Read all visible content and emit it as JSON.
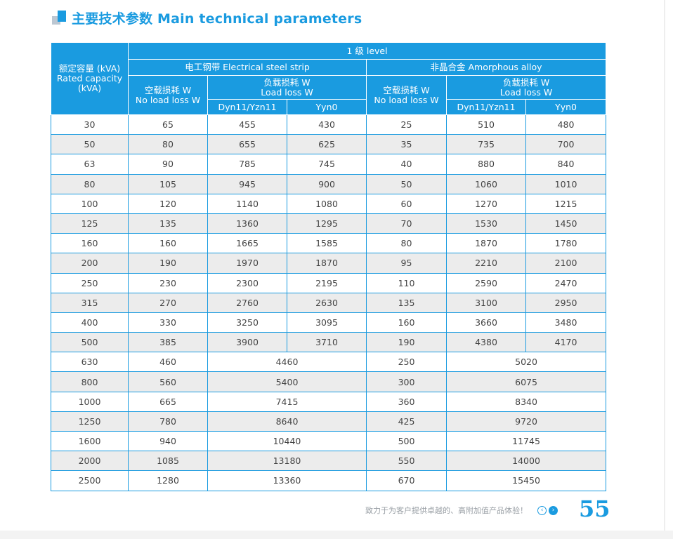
{
  "title": "主要技术参数 Main technical parameters",
  "table": {
    "header": {
      "capacity": [
        "额定容量 (kVA)",
        "Rated capacity",
        "(kVA)"
      ],
      "level": "1 级 level",
      "steel": "电工钢带 Electrical steel strip",
      "amorphous": "非晶合金 Amorphous alloy",
      "no_load": [
        "空载损耗 W",
        "No load loss W"
      ],
      "load": [
        "负载损耗 W",
        "Load loss W"
      ],
      "dyn": "Dyn11/Yzn11",
      "yyn": "Yyn0"
    },
    "split_rows": [
      [
        "30",
        "65",
        "455",
        "430",
        "25",
        "510",
        "480"
      ],
      [
        "50",
        "80",
        "655",
        "625",
        "35",
        "735",
        "700"
      ],
      [
        "63",
        "90",
        "785",
        "745",
        "40",
        "880",
        "840"
      ],
      [
        "80",
        "105",
        "945",
        "900",
        "50",
        "1060",
        "1010"
      ],
      [
        "100",
        "120",
        "1140",
        "1080",
        "60",
        "1270",
        "1215"
      ],
      [
        "125",
        "135",
        "1360",
        "1295",
        "70",
        "1530",
        "1450"
      ],
      [
        "160",
        "160",
        "1665",
        "1585",
        "80",
        "1870",
        "1780"
      ],
      [
        "200",
        "190",
        "1970",
        "1870",
        "95",
        "2210",
        "2100"
      ],
      [
        "250",
        "230",
        "2300",
        "2195",
        "110",
        "2590",
        "2470"
      ],
      [
        "315",
        "270",
        "2760",
        "2630",
        "135",
        "3100",
        "2950"
      ],
      [
        "400",
        "330",
        "3250",
        "3095",
        "160",
        "3660",
        "3480"
      ],
      [
        "500",
        "385",
        "3900",
        "3710",
        "190",
        "4380",
        "4170"
      ]
    ],
    "merged_rows": [
      [
        "630",
        "460",
        "4460",
        "250",
        "5020"
      ],
      [
        "800",
        "560",
        "5400",
        "300",
        "6075"
      ],
      [
        "1000",
        "665",
        "7415",
        "360",
        "8340"
      ],
      [
        "1250",
        "780",
        "8640",
        "425",
        "9720"
      ],
      [
        "1600",
        "940",
        "10440",
        "500",
        "11745"
      ],
      [
        "2000",
        "1085",
        "13180",
        "550",
        "14000"
      ],
      [
        "2500",
        "1280",
        "13360",
        "670",
        "15450"
      ]
    ]
  },
  "footer": {
    "slogan": "致力于为客户提供卓越的、高附加值产品体验！",
    "prev": "‹",
    "next": "›",
    "page_number": "55"
  },
  "colors": {
    "accent": "#1a9be0",
    "alt_row": "#ececec",
    "icon_grey": "#bcc7d2"
  }
}
